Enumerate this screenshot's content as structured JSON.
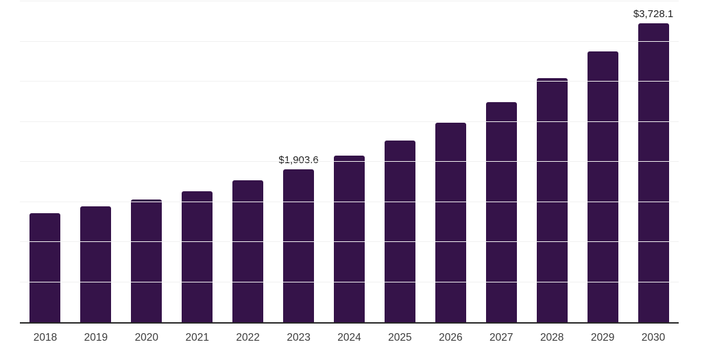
{
  "chart": {
    "bar_color": "#351349",
    "axis_color": "#282828",
    "gridline_color": "#f1f1f1",
    "data_label_color": "#1f1f1f",
    "tick_label_color": "#3c3c3c",
    "background_color": "#ffffff"
  },
  "chart_data": {
    "type": "bar",
    "title": "",
    "xlabel": "",
    "ylabel": "",
    "categories": [
      "2018",
      "2019",
      "2020",
      "2021",
      "2022",
      "2023",
      "2024",
      "2025",
      "2026",
      "2027",
      "2028",
      "2029",
      "2030"
    ],
    "values": [
      1356,
      1442,
      1527,
      1636,
      1769,
      1903.6,
      2073,
      2261,
      2489,
      2744,
      3043,
      3376,
      3728.1
    ],
    "data_labels": {
      "2023": "$1,903.6",
      "2030": "$3,728.1"
    },
    "ylim": [
      0,
      4000
    ],
    "grid_step": 500,
    "grid": true,
    "legend": false,
    "y_axis_labels_visible": false
  }
}
